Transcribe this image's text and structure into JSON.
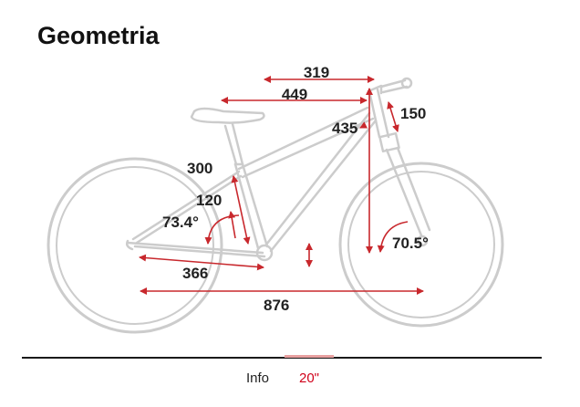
{
  "section_title": "Geometria",
  "measurements": {
    "top_tube": "319",
    "reach": "449",
    "stem": "150",
    "frame_length": "435",
    "seat_tube": "300",
    "head_tube": "120",
    "seat_angle": "73.4°",
    "head_angle": "70.5°",
    "chainstay": "366",
    "wheelbase": "876"
  },
  "tabs": {
    "info": "Info",
    "size": "20\""
  },
  "colors": {
    "accent": "#d0021b",
    "dimension_line": "#c8282d",
    "bike_outline": "#c8c8c8"
  }
}
